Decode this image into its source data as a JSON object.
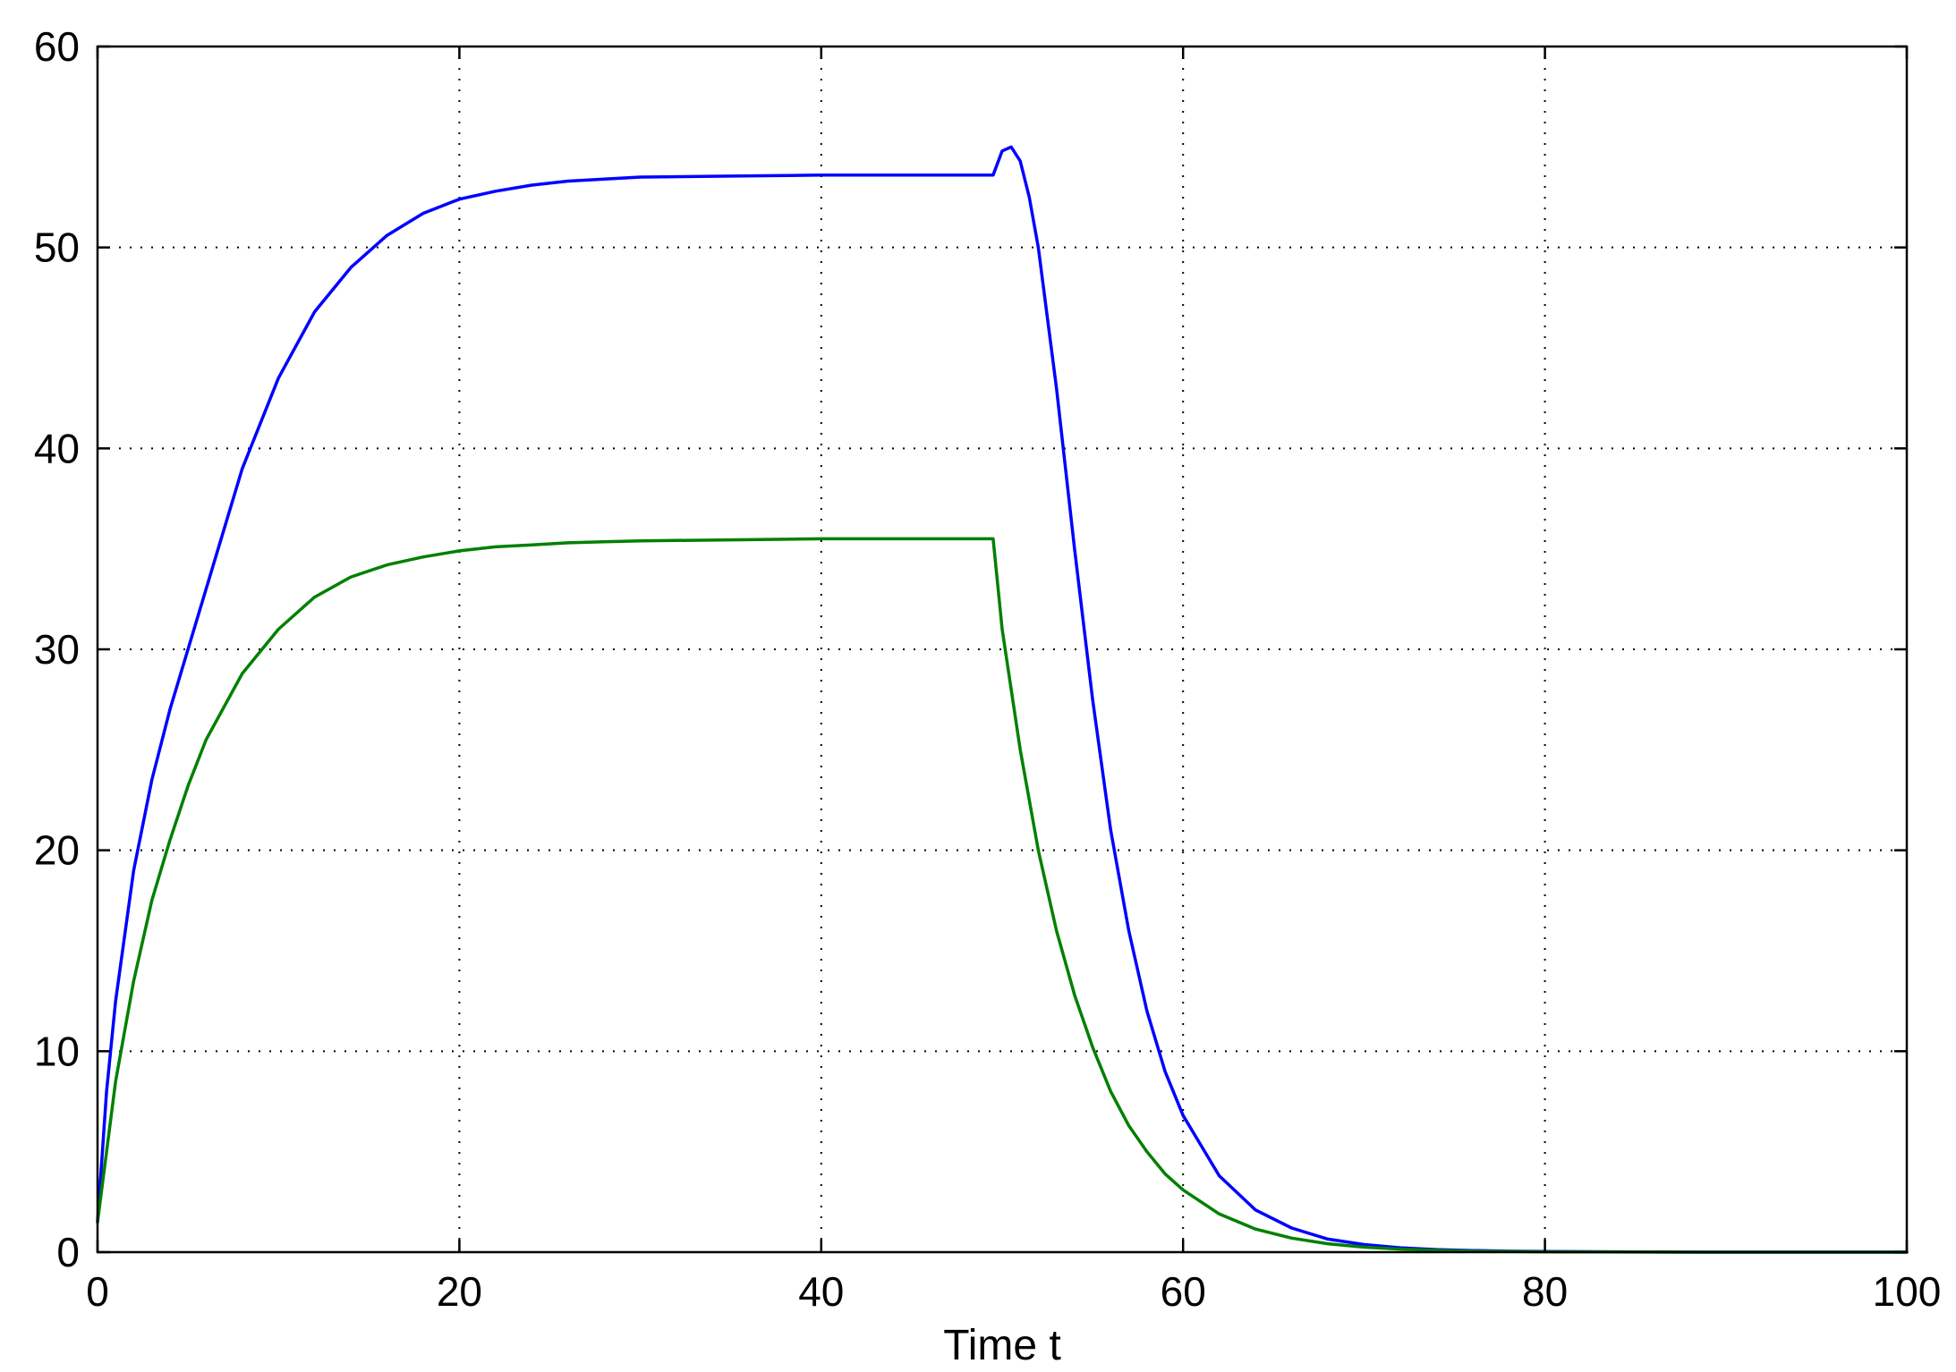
{
  "chart_data": {
    "type": "line",
    "title": "",
    "xlabel": "Time t",
    "ylabel": "",
    "xlim": [
      0,
      100
    ],
    "ylim": [
      0,
      60
    ],
    "xticks": [
      0,
      20,
      40,
      60,
      80,
      100
    ],
    "yticks": [
      0,
      10,
      20,
      30,
      40,
      50,
      60
    ],
    "grid": true,
    "grid_style": "dotted",
    "legend": "none",
    "series": [
      {
        "color": "#0000ff",
        "x": [
          0,
          0.5,
          1,
          2,
          3,
          4,
          5,
          6,
          8,
          10,
          12,
          14,
          16,
          18,
          20,
          22,
          24,
          26,
          28,
          30,
          35,
          40,
          45,
          49.5,
          50,
          50.5,
          51,
          51.5,
          52,
          53,
          54,
          55,
          56,
          57,
          58,
          59,
          60,
          62,
          64,
          66,
          68,
          70,
          72,
          74,
          76,
          78,
          80,
          85,
          90,
          100
        ],
        "y": [
          1.5,
          8,
          12.5,
          19,
          23.5,
          27,
          30,
          33,
          39,
          43.5,
          46.8,
          49.0,
          50.6,
          51.7,
          52.4,
          52.8,
          53.1,
          53.3,
          53.4,
          53.5,
          53.55,
          53.6,
          53.6,
          53.6,
          54.8,
          55.0,
          54.3,
          52.5,
          50.0,
          43.0,
          35.0,
          27.5,
          21.0,
          16.0,
          12.0,
          9.0,
          6.8,
          3.8,
          2.1,
          1.2,
          0.65,
          0.38,
          0.22,
          0.13,
          0.08,
          0.05,
          0.03,
          0.01,
          0,
          0
        ]
      },
      {
        "color": "#008000",
        "x": [
          0,
          0.5,
          1,
          2,
          3,
          4,
          5,
          6,
          8,
          10,
          12,
          14,
          16,
          18,
          20,
          22,
          24,
          26,
          28,
          30,
          35,
          40,
          45,
          49.5,
          50,
          51,
          52,
          53,
          54,
          55,
          56,
          57,
          58,
          59,
          60,
          62,
          64,
          66,
          68,
          70,
          72,
          74,
          76,
          78,
          80,
          85,
          90,
          100
        ],
        "y": [
          1.5,
          5,
          8.5,
          13.5,
          17.5,
          20.5,
          23.2,
          25.5,
          28.8,
          31.0,
          32.6,
          33.6,
          34.2,
          34.6,
          34.9,
          35.1,
          35.2,
          35.3,
          35.35,
          35.4,
          35.45,
          35.5,
          35.5,
          35.5,
          31.0,
          25.0,
          20.0,
          16.0,
          12.8,
          10.2,
          8.0,
          6.3,
          5.0,
          3.9,
          3.1,
          1.9,
          1.15,
          0.7,
          0.42,
          0.25,
          0.15,
          0.09,
          0.05,
          0.03,
          0.02,
          0.005,
          0,
          0
        ]
      }
    ]
  }
}
